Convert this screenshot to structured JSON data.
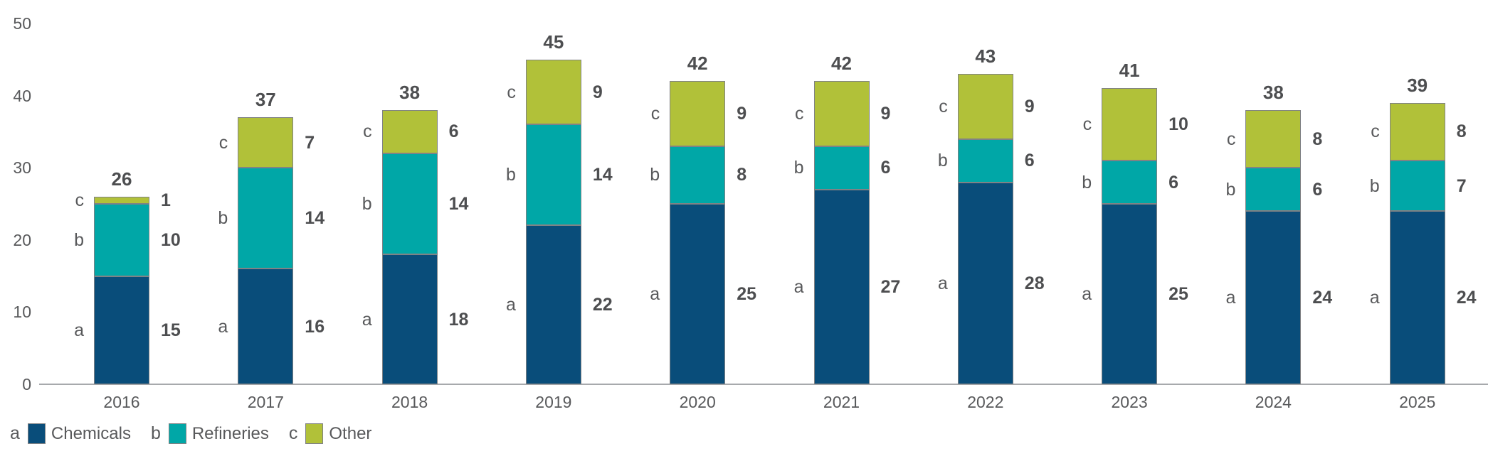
{
  "chart_data": {
    "type": "bar",
    "stacked": true,
    "title": "",
    "xlabel": "",
    "ylabel": "",
    "grid": false,
    "legend_position": "bottom-left",
    "categories": [
      "2016",
      "2017",
      "2018",
      "2019",
      "2020",
      "2021",
      "2022",
      "2023",
      "2024",
      "2025"
    ],
    "series": [
      {
        "key": "a",
        "name": "Chemicals",
        "color": "#094d7a",
        "values": [
          15,
          16,
          18,
          22,
          25,
          27,
          28,
          25,
          24,
          24
        ]
      },
      {
        "key": "b",
        "name": "Refineries",
        "color": "#00a7a7",
        "values": [
          10,
          14,
          14,
          14,
          8,
          6,
          6,
          6,
          6,
          7
        ]
      },
      {
        "key": "c",
        "name": "Other",
        "color": "#b1c139",
        "values": [
          1,
          7,
          6,
          9,
          9,
          9,
          9,
          10,
          8,
          8
        ]
      }
    ],
    "totals": [
      26,
      37,
      38,
      45,
      42,
      42,
      43,
      41,
      38,
      39
    ],
    "y_axis": {
      "min": 0,
      "max": 50,
      "ticks": [
        0,
        10,
        20,
        30,
        40,
        50
      ]
    }
  },
  "colors": {
    "text_gray": "#58595b",
    "bold_value_gray": "#4d4e50",
    "segment_border": "#808285",
    "axis_line": "#a7a9ac",
    "background": "#ffffff"
  }
}
